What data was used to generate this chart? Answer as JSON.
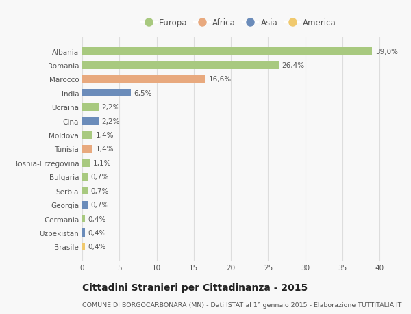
{
  "countries": [
    "Albania",
    "Romania",
    "Marocco",
    "India",
    "Ucraina",
    "Cina",
    "Moldova",
    "Tunisia",
    "Bosnia-Erzegovina",
    "Bulgaria",
    "Serbia",
    "Georgia",
    "Germania",
    "Uzbekistan",
    "Brasile"
  ],
  "values": [
    39.0,
    26.4,
    16.6,
    6.5,
    2.2,
    2.2,
    1.4,
    1.4,
    1.1,
    0.7,
    0.7,
    0.7,
    0.4,
    0.4,
    0.4
  ],
  "labels": [
    "39,0%",
    "26,4%",
    "16,6%",
    "6,5%",
    "2,2%",
    "2,2%",
    "1,4%",
    "1,4%",
    "1,1%",
    "0,7%",
    "0,7%",
    "0,7%",
    "0,4%",
    "0,4%",
    "0,4%"
  ],
  "continents": [
    "Europa",
    "Europa",
    "Africa",
    "Asia",
    "Europa",
    "Asia",
    "Europa",
    "Africa",
    "Europa",
    "Europa",
    "Europa",
    "Asia",
    "Europa",
    "Asia",
    "America"
  ],
  "continent_colors": {
    "Europa": "#a8c97f",
    "Africa": "#e8a97e",
    "Asia": "#6b8cba",
    "America": "#f0c96e"
  },
  "legend_order": [
    "Europa",
    "Africa",
    "Asia",
    "America"
  ],
  "title": "Cittadini Stranieri per Cittadinanza - 2015",
  "subtitle": "COMUNE DI BORGOCARBONARA (MN) - Dati ISTAT al 1° gennaio 2015 - Elaborazione TUTTITALIA.IT",
  "xlim": [
    0,
    42
  ],
  "xticks": [
    0,
    5,
    10,
    15,
    20,
    25,
    30,
    35,
    40
  ],
  "background_color": "#f8f8f8",
  "grid_color": "#dddddd",
  "bar_height": 0.55,
  "label_fontsize": 7.5,
  "title_fontsize": 10,
  "subtitle_fontsize": 6.8,
  "tick_fontsize": 7.5,
  "legend_fontsize": 8.5
}
